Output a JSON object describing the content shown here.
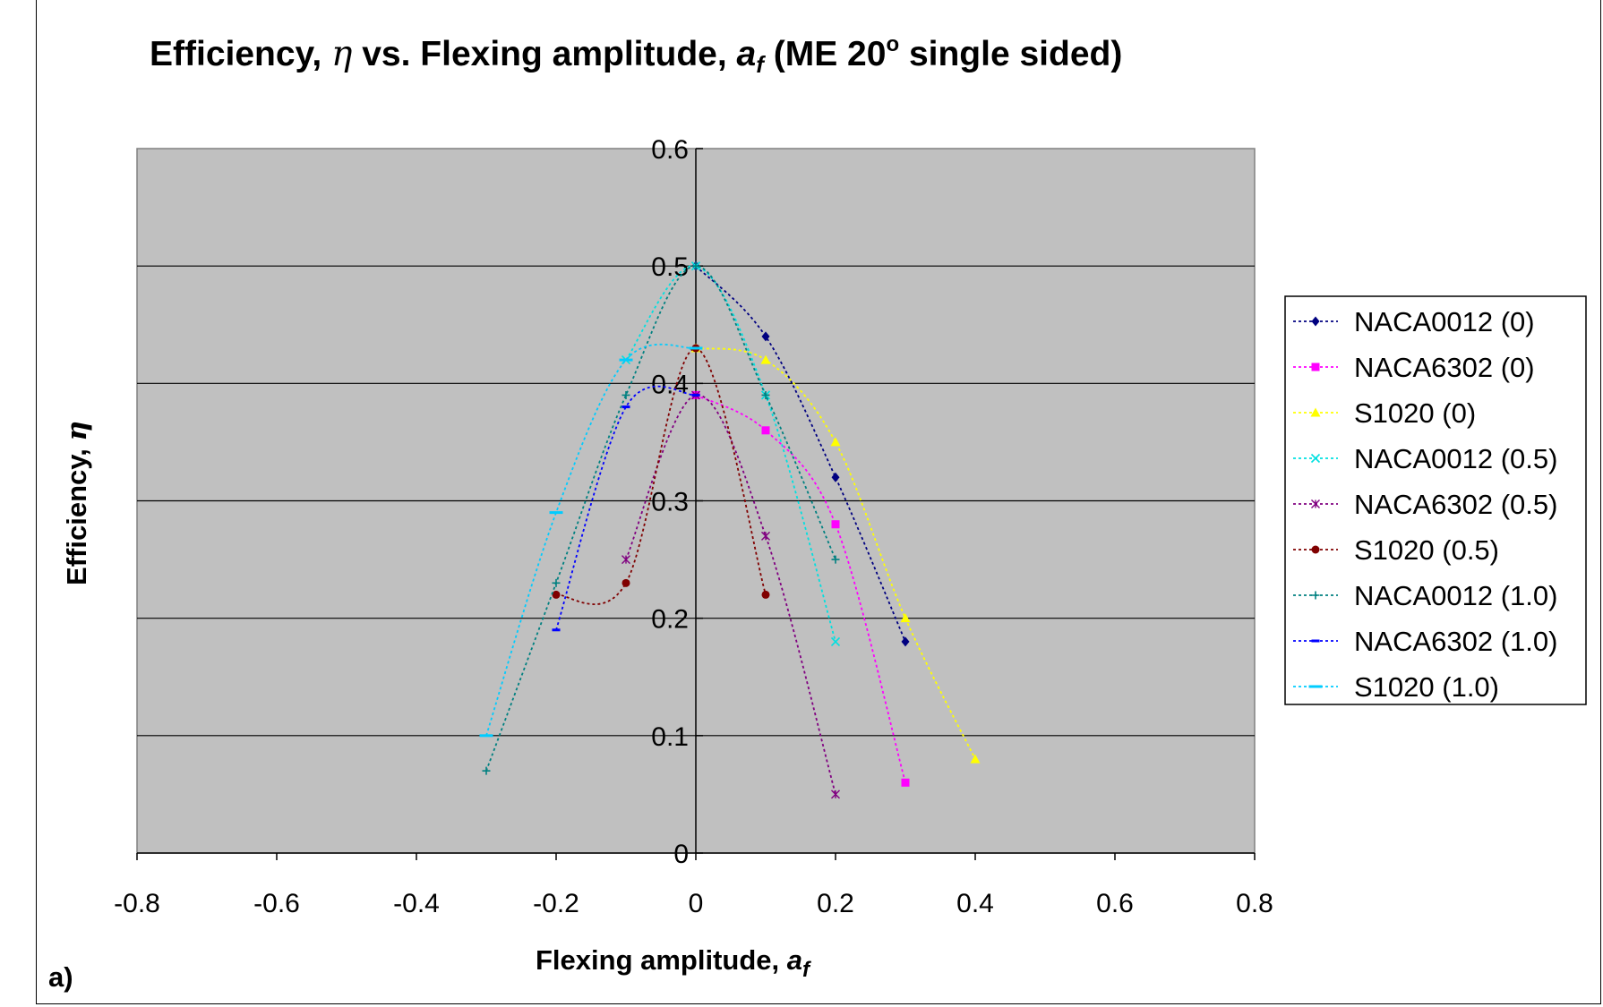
{
  "chart_data": {
    "type": "line",
    "title": {
      "part1": "Efficiency, ",
      "symbol": "η",
      "part2": "  vs. Flexing amplitude, ",
      "var": "a",
      "sub": "f",
      "part3": " (ME 20",
      "sup": "o",
      "part4": " single sided)"
    },
    "xlabel": {
      "text": "Flexing amplitude, ",
      "var": "a",
      "sub": "f"
    },
    "ylabel": {
      "text": "Efficiency, ",
      "symbol": "η"
    },
    "panel_label": "a)",
    "xlim": [
      -0.8,
      0.8
    ],
    "ylim": [
      0,
      0.6
    ],
    "x_ticks": [
      -0.8,
      -0.6,
      -0.4,
      -0.2,
      0,
      0.2,
      0.4,
      0.6,
      0.8
    ],
    "y_ticks": [
      0,
      0.1,
      0.2,
      0.3,
      0.4,
      0.5,
      0.6
    ],
    "x_tick_labels": [
      "-0.8",
      "-0.6",
      "-0.4",
      "-0.2",
      "0",
      "0.2",
      "0.4",
      "0.6",
      "0.8"
    ],
    "y_tick_labels": [
      "0",
      "0.1",
      "0.2",
      "0.3",
      "0.4",
      "0.5",
      "0.6"
    ],
    "grid": "horizontal",
    "plot_background": "#c0c0c0",
    "legend_position": "right",
    "series": [
      {
        "name": "NACA0012 (0)",
        "color": "#000080",
        "marker": "diamond",
        "x": [
          0,
          0.1,
          0.2,
          0.3
        ],
        "y": [
          0.5,
          0.44,
          0.32,
          0.18
        ]
      },
      {
        "name": "NACA6302 (0)",
        "color": "#ff00ff",
        "marker": "square",
        "x": [
          0,
          0.1,
          0.2,
          0.3
        ],
        "y": [
          0.39,
          0.36,
          0.28,
          0.06
        ]
      },
      {
        "name": "S1020 (0)",
        "color": "#ffff00",
        "marker": "triangle",
        "x": [
          0,
          0.1,
          0.2,
          0.3,
          0.4
        ],
        "y": [
          0.43,
          0.42,
          0.35,
          0.2,
          0.08
        ]
      },
      {
        "name": "NACA0012 (0.5)",
        "color": "#00e0e0",
        "marker": "x",
        "x": [
          -0.1,
          0,
          0.1,
          0.2
        ],
        "y": [
          0.42,
          0.5,
          0.39,
          0.18
        ]
      },
      {
        "name": "NACA6302 (0.5)",
        "color": "#800080",
        "marker": "star",
        "x": [
          -0.1,
          0,
          0.1,
          0.2
        ],
        "y": [
          0.25,
          0.39,
          0.27,
          0.05
        ]
      },
      {
        "name": "S1020 (0.5)",
        "color": "#800000",
        "marker": "circle",
        "x": [
          -0.2,
          -0.1,
          0,
          0.1
        ],
        "y": [
          0.22,
          0.23,
          0.43,
          0.22
        ]
      },
      {
        "name": "NACA0012 (1.0)",
        "color": "#008080",
        "marker": "plus",
        "x": [
          -0.3,
          -0.2,
          -0.1,
          0,
          0.1,
          0.2
        ],
        "y": [
          0.07,
          0.23,
          0.39,
          0.5,
          0.39,
          0.25
        ]
      },
      {
        "name": "NACA6302 (1.0)",
        "color": "#0000ff",
        "marker": "dash",
        "x": [
          -0.2,
          -0.1,
          0
        ],
        "y": [
          0.19,
          0.38,
          0.39
        ]
      },
      {
        "name": "S1020 (1.0)",
        "color": "#00ccff",
        "marker": "longdash",
        "x": [
          -0.3,
          -0.2,
          -0.1,
          0
        ],
        "y": [
          0.1,
          0.29,
          0.42,
          0.43
        ]
      }
    ]
  }
}
